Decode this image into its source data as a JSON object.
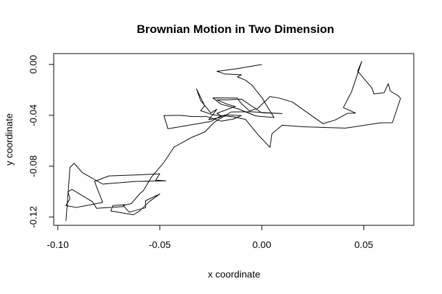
{
  "chart_data": {
    "type": "line",
    "title": "Brownian Motion in Two Dimension",
    "xlabel": "x coordinate",
    "ylabel": "y coordinate",
    "xlim": [
      -0.102,
      0.0745
    ],
    "ylim": [
      -0.1265,
      0.0085
    ],
    "xticks": [
      -0.1,
      -0.05,
      0.0,
      0.05
    ],
    "xtick_labels": [
      "-0.10",
      "-0.05",
      "0.00",
      "0.05"
    ],
    "yticks": [
      0.0,
      -0.04,
      -0.08,
      -0.12
    ],
    "ytick_labels": [
      "0.00",
      "-0.04",
      "-0.08",
      "-0.12"
    ],
    "grid": false,
    "legend": "none",
    "line_color": "#000000",
    "series": [
      {
        "x": [
          0.0,
          -0.013,
          -0.022,
          -0.018,
          -0.01,
          -0.012,
          -0.008,
          -0.005,
          0.0,
          0.006,
          -0.003,
          -0.012,
          -0.02,
          -0.024,
          -0.012,
          -0.01,
          -0.006,
          -0.002,
          0.004,
          0.008,
          0.015,
          0.03,
          0.036,
          0.042,
          0.046,
          0.04,
          0.044,
          0.049,
          0.047,
          0.054,
          0.055,
          0.06,
          0.062,
          0.063,
          0.067,
          0.068,
          0.064,
          0.058,
          0.041,
          0.02,
          0.01,
          0.005,
          0.004,
          -0.002,
          -0.008,
          -0.014,
          -0.024,
          -0.03,
          -0.028,
          -0.032,
          -0.03,
          -0.025,
          -0.022,
          -0.026,
          -0.021,
          -0.018,
          -0.01,
          -0.014,
          -0.02,
          -0.027,
          -0.034,
          -0.04,
          -0.048,
          -0.046,
          -0.025,
          -0.02,
          -0.022,
          -0.013,
          -0.017,
          -0.022,
          -0.017,
          -0.01,
          0.0,
          0.01,
          -0.005,
          -0.015,
          -0.023,
          -0.028,
          -0.034,
          -0.043,
          -0.048,
          -0.054,
          -0.058,
          -0.06,
          -0.064,
          -0.068,
          -0.065,
          -0.057,
          -0.057,
          -0.05,
          -0.055,
          -0.06,
          -0.063,
          -0.074,
          -0.073,
          -0.067,
          -0.068,
          -0.081,
          -0.083,
          -0.093,
          -0.095,
          -0.094,
          -0.096,
          -0.091,
          -0.086,
          -0.078,
          -0.082,
          -0.075,
          -0.06,
          -0.05,
          -0.052,
          -0.047,
          -0.062,
          -0.078,
          -0.088,
          -0.092,
          -0.094,
          -0.096
        ],
        "y": [
          -0.0001,
          -0.0036,
          -0.0054,
          -0.0076,
          -0.0082,
          -0.0098,
          -0.0124,
          -0.016,
          -0.026,
          -0.0418,
          -0.0405,
          -0.0347,
          -0.0313,
          -0.0263,
          -0.0265,
          -0.0308,
          -0.0366,
          -0.0346,
          -0.0253,
          -0.0263,
          -0.0296,
          -0.0466,
          -0.0437,
          -0.0385,
          -0.0383,
          -0.034,
          -0.0215,
          0.0024,
          -0.0053,
          -0.0186,
          -0.0232,
          -0.0222,
          -0.0152,
          -0.021,
          -0.0248,
          -0.0268,
          -0.0459,
          -0.046,
          -0.0501,
          -0.049,
          -0.0478,
          -0.0545,
          -0.0652,
          -0.055,
          -0.0432,
          -0.0412,
          -0.0396,
          -0.0364,
          -0.0325,
          -0.0192,
          -0.0283,
          -0.0382,
          -0.0353,
          -0.0435,
          -0.0419,
          -0.0397,
          -0.0402,
          -0.043,
          -0.0446,
          -0.041,
          -0.041,
          -0.0401,
          -0.0402,
          -0.0506,
          -0.0449,
          -0.0405,
          -0.0384,
          -0.0331,
          -0.0313,
          -0.0278,
          -0.0279,
          -0.0273,
          -0.038,
          -0.0387,
          -0.0373,
          -0.0374,
          -0.0451,
          -0.0532,
          -0.0571,
          -0.065,
          -0.0771,
          -0.0884,
          -0.0991,
          -0.102,
          -0.1095,
          -0.1108,
          -0.1162,
          -0.1127,
          -0.1072,
          -0.1019,
          -0.1077,
          -0.1154,
          -0.1182,
          -0.1152,
          -0.111,
          -0.1103,
          -0.1118,
          -0.1131,
          -0.108,
          -0.0983,
          -0.1001,
          -0.1055,
          -0.1109,
          -0.1125,
          -0.111,
          -0.1085,
          -0.092,
          -0.0877,
          -0.0868,
          -0.086,
          -0.091,
          -0.0915,
          -0.092,
          -0.0941,
          -0.085,
          -0.0777,
          -0.081,
          -0.123
        ]
      }
    ]
  }
}
